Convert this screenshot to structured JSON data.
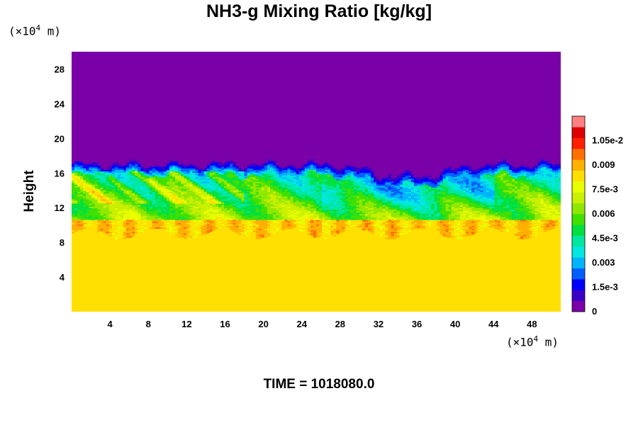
{
  "chart_data": {
    "type": "heatmap",
    "title": "NH3-g Mixing Ratio [kg/kg]",
    "ylabel": "Height",
    "xlabel": "",
    "y_unit_prefix": "(×10",
    "y_unit_exp": "4",
    "y_unit_suffix": " m)",
    "x_unit_prefix": "(×10",
    "x_unit_exp": "4",
    "x_unit_suffix": " m)",
    "xlim": [
      0,
      51
    ],
    "ylim": [
      0,
      30
    ],
    "x_ticks": [
      "4",
      "8",
      "12",
      "16",
      "20",
      "24",
      "28",
      "32",
      "36",
      "40",
      "44",
      "48"
    ],
    "x_tick_values": [
      4,
      8,
      12,
      16,
      20,
      24,
      28,
      32,
      36,
      40,
      44,
      48
    ],
    "y_ticks": [
      "4",
      "8",
      "12",
      "16",
      "20",
      "24",
      "28"
    ],
    "y_tick_values": [
      4,
      8,
      12,
      16,
      20,
      24,
      28
    ],
    "colorbar": {
      "range": [
        0,
        0.012
      ],
      "tick_labels": [
        "0",
        "1.5e-3",
        "0.003",
        "4.5e-3",
        "0.006",
        "7.5e-3",
        "0.009",
        "1.05e-2"
      ],
      "tick_values": [
        0,
        0.0015,
        0.003,
        0.0045,
        0.006,
        0.0075,
        0.009,
        0.0105
      ],
      "colors": [
        "#7a00a8",
        "#3a00c8",
        "#0000ff",
        "#0060ff",
        "#00b4ff",
        "#00e8e0",
        "#00e8a0",
        "#00e040",
        "#40e000",
        "#90e800",
        "#c8f000",
        "#e8ff00",
        "#ffe000",
        "#ffb000",
        "#ff7000",
        "#ff2000",
        "#e00000",
        "#ff8080"
      ]
    },
    "field": {
      "surface_value": 0.008,
      "layer_value_near_10": 0.0086,
      "top_value": 0.0,
      "interface_height_left": 17.0,
      "interface_height_dip": 15.8,
      "dip_x_range": [
        28,
        42
      ],
      "mixed_layer": [
        9,
        17
      ]
    }
  },
  "time_text": "TIME = 1018080.0"
}
